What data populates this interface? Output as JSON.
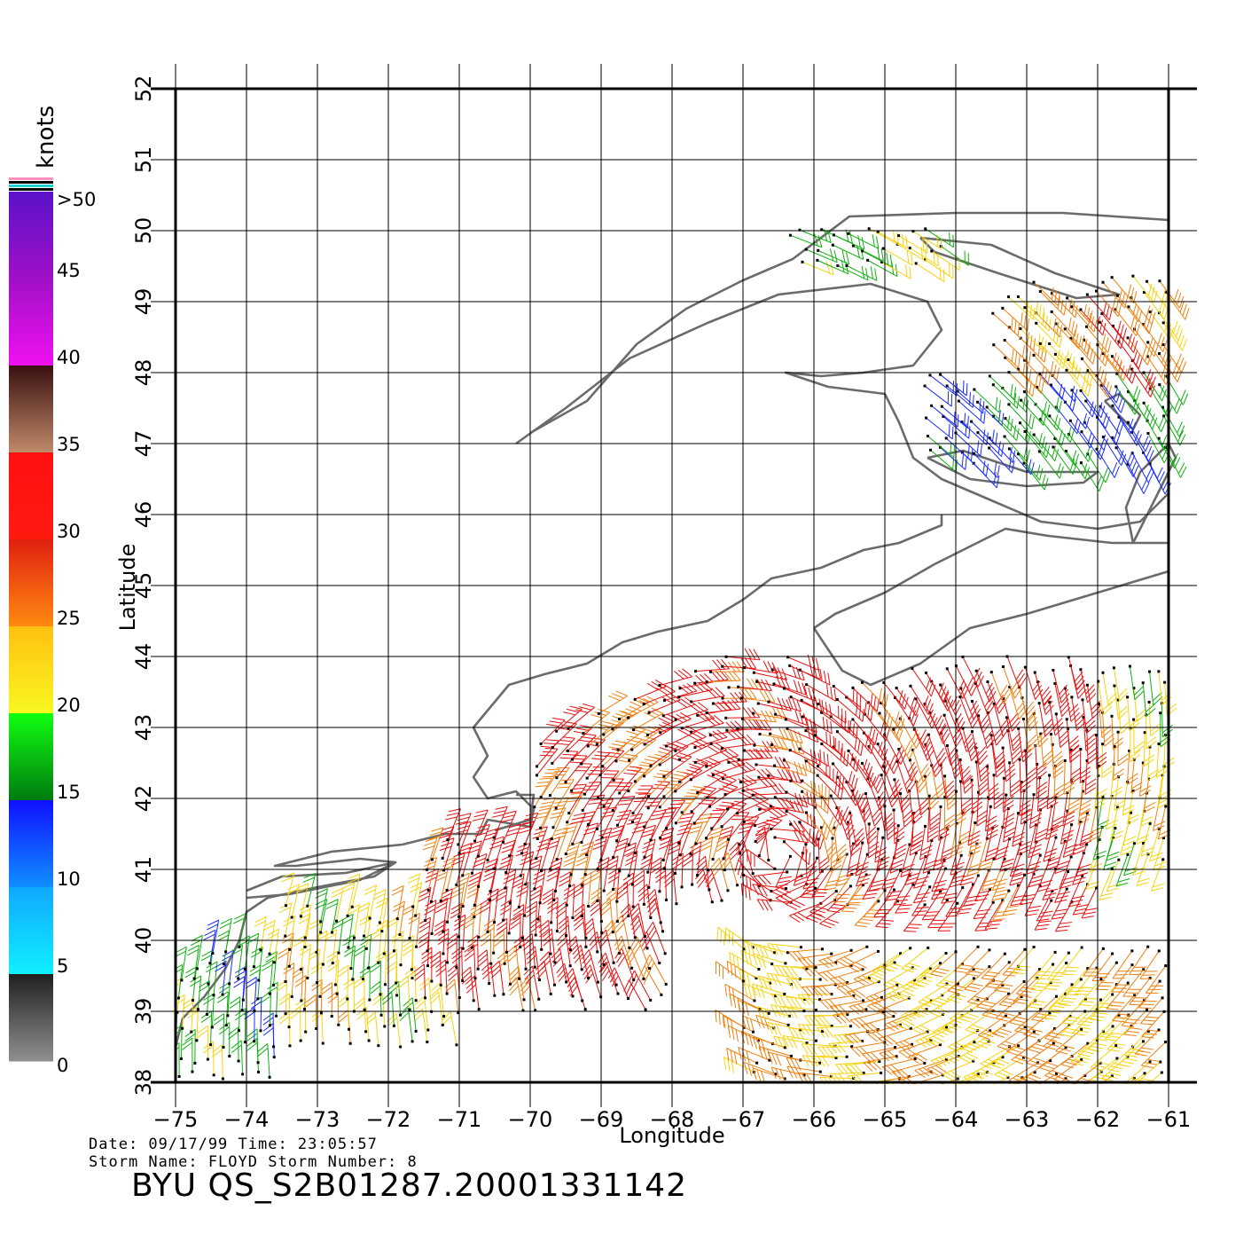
{
  "map": {
    "x_axis_label": "Longitude",
    "y_axis_label": "Latitude",
    "lon_ticks": [
      "-75",
      "-74",
      "-73",
      "-72",
      "-71",
      "-70",
      "-69",
      "-68",
      "-67",
      "-66",
      "-65",
      "-64",
      "-63",
      "-62",
      "-61"
    ],
    "lat_ticks": [
      "38",
      "39",
      "40",
      "41",
      "42",
      "43",
      "44",
      "45",
      "46",
      "47",
      "48",
      "49",
      "50",
      "51",
      "52"
    ],
    "lon_range": [
      -75,
      -61
    ],
    "lat_range": [
      38,
      52
    ],
    "grid": true,
    "coast_color": "#6b6b6b",
    "grid_color": "#000000"
  },
  "colorbar": {
    "unit_label": "knots",
    "tick_labels": [
      ">50",
      "45",
      "40",
      "35",
      "30",
      "25",
      "20",
      "15",
      "10",
      "5",
      "0"
    ],
    "bands": [
      {
        "range": "45-50",
        "top": "#5a12c8",
        "bottom": "#a010c8"
      },
      {
        "range": "40-45",
        "top": "#a010c8",
        "bottom": "#f010f0"
      },
      {
        "range": "35-40",
        "top": "#3a1010",
        "bottom": "#c08a6a"
      },
      {
        "range": "30-35",
        "top": "#ff1010",
        "bottom": "#ff1a10"
      },
      {
        "range": "25-30",
        "top": "#e02010",
        "bottom": "#ff8a10"
      },
      {
        "range": "20-25",
        "top": "#ffc010",
        "bottom": "#f8f820"
      },
      {
        "range": "15-20",
        "top": "#10ff10",
        "bottom": "#007a10"
      },
      {
        "range": "10-15",
        "top": "#1010ff",
        "bottom": "#1090ff"
      },
      {
        "range": "5-10",
        "top": "#10a8ff",
        "bottom": "#10f0ff"
      },
      {
        "range": "0-5",
        "top": "#202020",
        "bottom": "#909090"
      }
    ]
  },
  "footer": {
    "date_line": "Date: 09/17/99   Time: 23:05:57",
    "storm_line": "Storm Name: FLOYD   Storm Number: 8",
    "product_id": "BYU QS_S2B01287.20001331142"
  },
  "chart_data": {
    "type": "wind_barbs",
    "x_label": "Longitude",
    "y_label": "Latitude",
    "xlim": [
      -75,
      -61
    ],
    "ylim": [
      38,
      52
    ],
    "units": "knots",
    "regions": [
      {
        "lon": [
          -68.5,
          -62.0
        ],
        "lat": [
          40.5,
          44.0
        ],
        "speed_range_kt": [
          30,
          35
        ],
        "color": "red"
      },
      {
        "lon": [
          -71.5,
          -68.0
        ],
        "lat": [
          39.0,
          41.5
        ],
        "speed_range_kt": [
          30,
          35
        ],
        "color": "red"
      },
      {
        "lon": [
          -70.0,
          -67.0
        ],
        "lat": [
          41.0,
          43.5
        ],
        "speed_range_kt": [
          25,
          35
        ],
        "color": "red-orange"
      },
      {
        "lon": [
          -67.0,
          -61.0
        ],
        "lat": [
          38.0,
          40.0
        ],
        "speed_range_kt": [
          20,
          30
        ],
        "color": "yellow-orange"
      },
      {
        "lon": [
          -73.5,
          -71.0
        ],
        "lat": [
          38.5,
          40.5
        ],
        "speed_range_kt": [
          20,
          25
        ],
        "color": "yellow"
      },
      {
        "lon": [
          -75.0,
          -73.5
        ],
        "lat": [
          38.0,
          40.0
        ],
        "speed_range_kt": [
          15,
          20
        ],
        "color": "green"
      },
      {
        "lon": [
          -63.0,
          -61.0
        ],
        "lat": [
          41.0,
          44.0
        ],
        "speed_range_kt": [
          20,
          25
        ],
        "color": "yellow"
      },
      {
        "lon": [
          -64.5,
          -61.0
        ],
        "lat": [
          46.5,
          48.0
        ],
        "speed_range_kt": [
          10,
          20
        ],
        "color": "blue-green"
      },
      {
        "lon": [
          -63.5,
          -61.0
        ],
        "lat": [
          48.0,
          49.5
        ],
        "speed_range_kt": [
          25,
          30
        ],
        "color": "orange"
      },
      {
        "lon": [
          -66.5,
          -64.0
        ],
        "lat": [
          49.5,
          50.2
        ],
        "speed_range_kt": [
          15,
          25
        ],
        "color": "green-yellow"
      }
    ]
  }
}
